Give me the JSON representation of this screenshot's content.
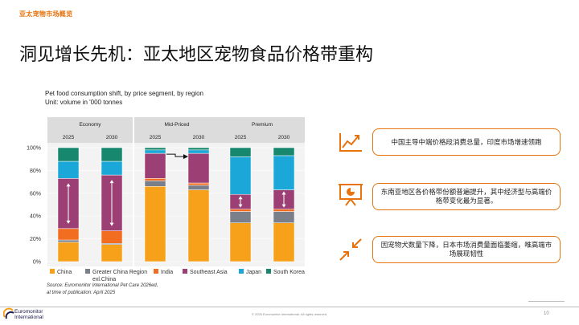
{
  "header": {
    "section_tag": "亚太宠物市场概览",
    "title": "洞见增长先机：亚太地区宠物食品价格带重构"
  },
  "chart": {
    "subtitle_line1": "Pet food consumption shift, by price segment, by region",
    "subtitle_line2": "Unit: volume in '000 tonnes",
    "source_line1": "Source: Euromonitor International Pet Care 2026ed,",
    "source_line2": "at time of publication: April 2025"
  },
  "chart_data": {
    "type": "bar",
    "stacked": true,
    "y_ticks": [
      "0%",
      "20%",
      "40%",
      "60%",
      "80%",
      "100%"
    ],
    "ylim": [
      0,
      100
    ],
    "groups": [
      {
        "name": "Economy",
        "years": [
          "2025",
          "2030"
        ]
      },
      {
        "name": "Mid-Priced",
        "years": [
          "2025",
          "2030"
        ]
      },
      {
        "name": "Premium",
        "years": [
          "2025",
          "2030"
        ]
      }
    ],
    "categories": [
      "Economy 2025",
      "Economy 2030",
      "Mid-Priced 2025",
      "Mid-Priced 2030",
      "Premium 2025",
      "Premium 2030"
    ],
    "series": [
      {
        "name": "China",
        "color": "#f7a11a",
        "values": [
          17,
          15,
          66,
          63,
          34,
          34
        ]
      },
      {
        "name": "Greater China Region exl.China",
        "color": "#7a7f8a",
        "values": [
          2,
          1,
          5,
          4,
          10,
          10
        ]
      },
      {
        "name": "India",
        "color": "#f36d21",
        "values": [
          10,
          11,
          2,
          2,
          2,
          2
        ]
      },
      {
        "name": "Southeast Asia",
        "color": "#9c3f74",
        "values": [
          44,
          49,
          22,
          26,
          13,
          17
        ]
      },
      {
        "name": "Japan",
        "color": "#1ba8d8",
        "values": [
          15,
          12,
          3,
          3,
          33,
          30
        ]
      },
      {
        "name": "South Korea",
        "color": "#17876d",
        "values": [
          12,
          12,
          2,
          2,
          8,
          7
        ]
      }
    ],
    "legend_position": "bottom"
  },
  "insights": [
    {
      "text": "中国主导中端价格段消费总量，印度市场增速领跑",
      "icon": "rising-chart-icon"
    },
    {
      "text": "东南亚地区各价格带份额普遍提升，其中经济型与高端价格带变化最为显著。",
      "icon": "presentation-board-icon"
    },
    {
      "text": "因宠物犬数量下降，日本市场消费量面临萎缩，唯高端市场展现韧性",
      "icon": "compress-arrows-icon"
    }
  ],
  "footer": {
    "copyright": "© 2026 Euromonitor International. All rights reserved.",
    "page_number": "10",
    "logo_line1": "Euromonitor",
    "logo_line2": "International"
  },
  "colors": {
    "accent": "#e8720c",
    "header_band": "#dcdcdc"
  }
}
